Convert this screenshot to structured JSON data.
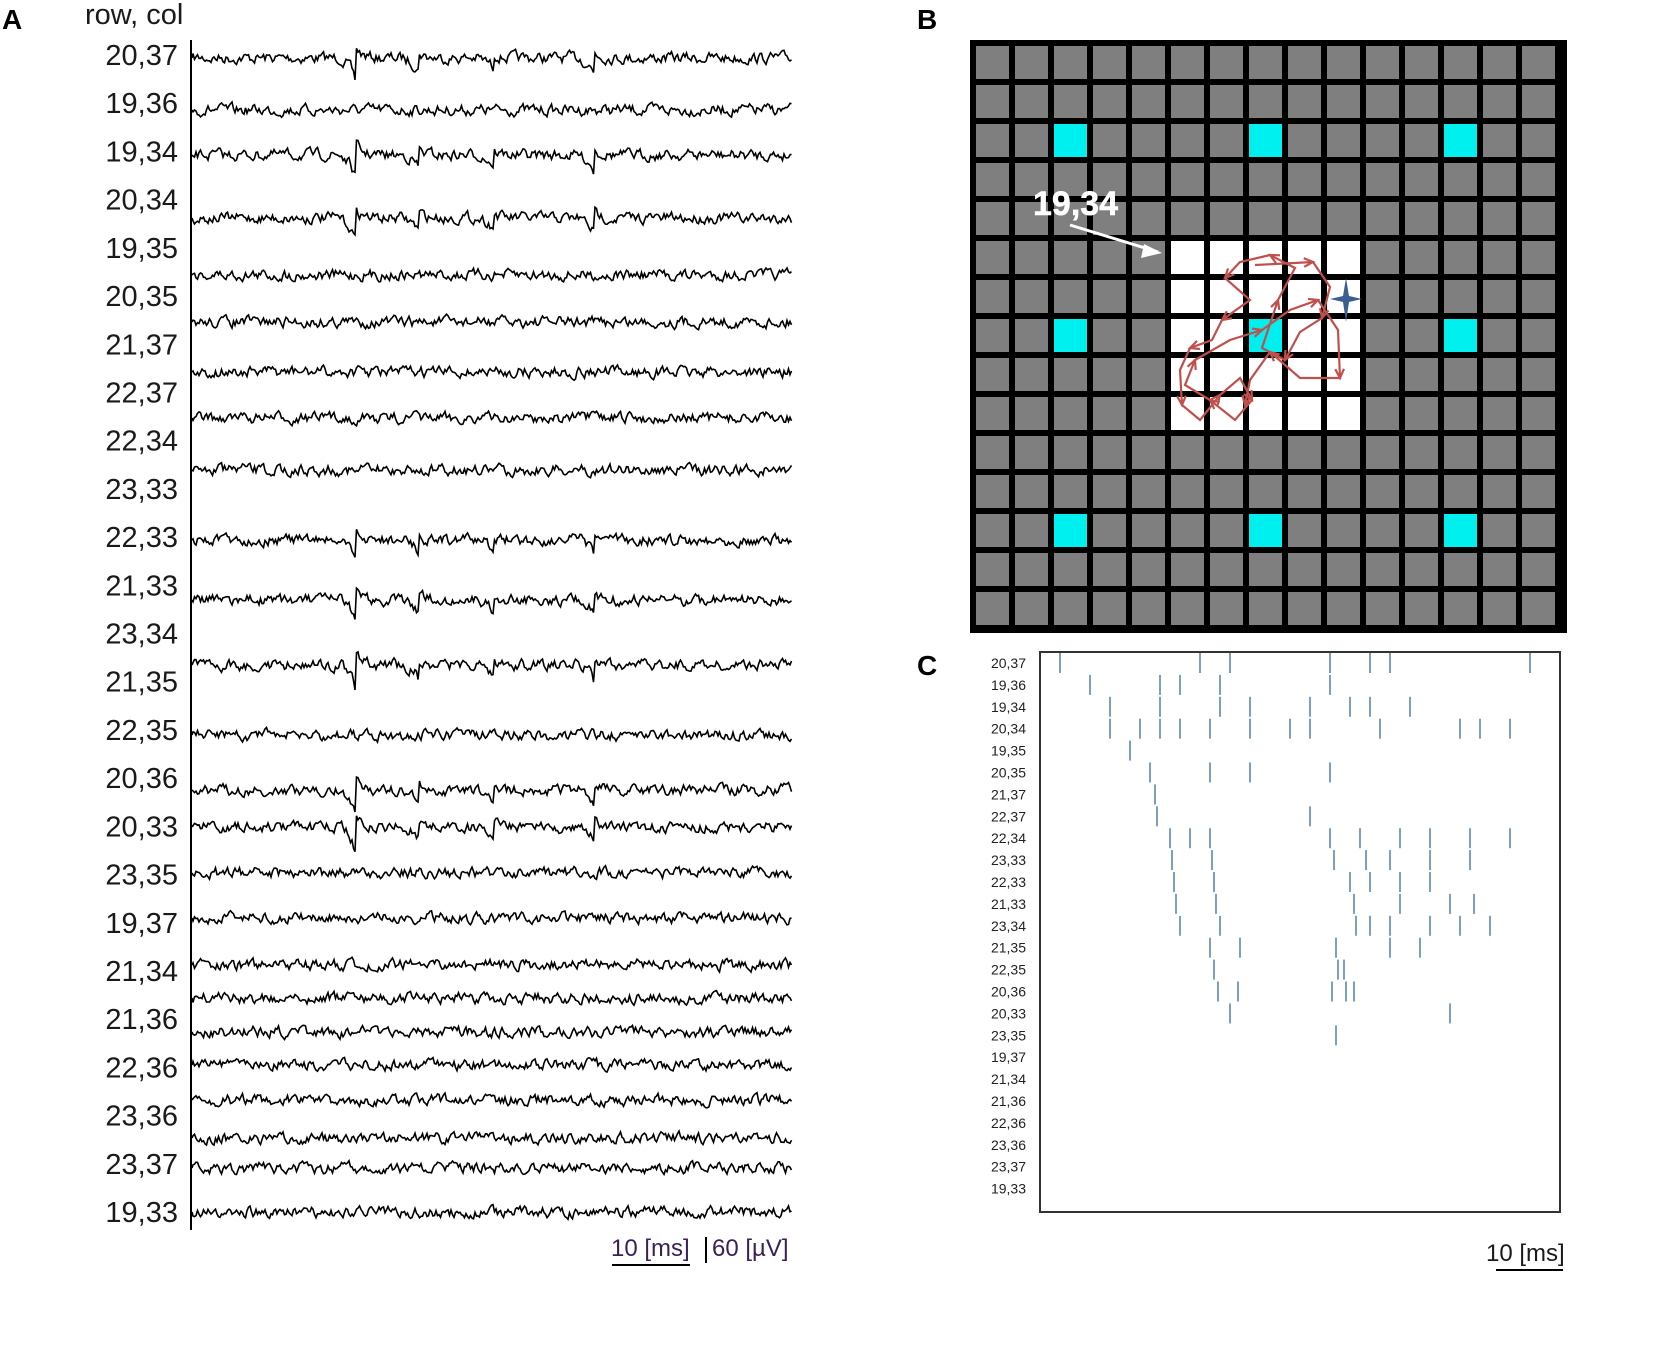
{
  "panels": {
    "A": {
      "letter": "A",
      "header": "row, col",
      "labels": [
        "20,37",
        "19,36",
        "19,34",
        "20,34",
        "19,35",
        "20,35",
        "21,37",
        "22,37",
        "22,34",
        "23,33",
        "22,33",
        "21,33",
        "23,34",
        "21,35",
        "22,35",
        "20,36",
        "20,33",
        "23,35",
        "19,37",
        "21,34",
        "21,36",
        "22,36",
        "23,36",
        "23,37",
        "19,33"
      ],
      "time_scale": "10 [ms]",
      "amp_scale": "60 [µV]"
    },
    "B": {
      "letter": "B",
      "annotation": "19,34",
      "grid_rows": 15,
      "grid_cols": 15,
      "colors": {
        "background": "#000000",
        "electrode": "#7f7f7f",
        "active": "#ffffff",
        "stimulation": "#00f0f0",
        "path": "#c0504d",
        "star": "#3b5f8f"
      },
      "stimulation_sites": [
        [
          2,
          2
        ],
        [
          2,
          7
        ],
        [
          2,
          12
        ],
        [
          7,
          2
        ],
        [
          7,
          7
        ],
        [
          7,
          12
        ],
        [
          12,
          2
        ],
        [
          12,
          7
        ],
        [
          12,
          12
        ]
      ],
      "active_sites": [
        [
          5,
          5
        ],
        [
          5,
          6
        ],
        [
          5,
          7
        ],
        [
          5,
          8
        ],
        [
          5,
          9
        ],
        [
          6,
          5
        ],
        [
          6,
          6
        ],
        [
          6,
          7
        ],
        [
          6,
          8
        ],
        [
          6,
          9
        ],
        [
          7,
          5
        ],
        [
          7,
          6
        ],
        [
          7,
          8
        ],
        [
          7,
          9
        ],
        [
          8,
          5
        ],
        [
          8,
          6
        ],
        [
          8,
          7
        ],
        [
          8,
          8
        ],
        [
          8,
          9
        ],
        [
          9,
          5
        ],
        [
          9,
          6
        ],
        [
          9,
          7
        ],
        [
          9,
          8
        ],
        [
          9,
          9
        ]
      ]
    },
    "C": {
      "letter": "C",
      "labels": [
        "20,37",
        "19,36",
        "19,34",
        "20,34",
        "19,35",
        "20,35",
        "21,37",
        "22,37",
        "22,34",
        "23,33",
        "22,33",
        "21,33",
        "23,34",
        "21,35",
        "22,35",
        "20,36",
        "20,33",
        "23,35",
        "19,37",
        "21,34",
        "21,36",
        "22,36",
        "23,36",
        "23,37",
        "19,33"
      ],
      "time_scale": "10 [ms]",
      "spike_color": "#7f9fbf",
      "spikes": [
        [
          1,
          8,
          9.5,
          14.5,
          16.5,
          17.5,
          24.5
        ],
        [
          2.5,
          6,
          7,
          9,
          14.5
        ],
        [
          3.5,
          6,
          9,
          10.5,
          13.5,
          15.5,
          16.5,
          18.5
        ],
        [
          3.5,
          5,
          6,
          7,
          8.5,
          10.5,
          12.5,
          13.5,
          17,
          21,
          22,
          23.5
        ],
        [
          4.5
        ],
        [
          5.5,
          8.5,
          10.5,
          14.5
        ],
        [
          5.75
        ],
        [
          5.85,
          13.5
        ],
        [
          6.5,
          7.5,
          8.5,
          14.5,
          16,
          18,
          19.5,
          21.5,
          23.5
        ],
        [
          6.6,
          8.6,
          14.7,
          16.3,
          17.5,
          19.5,
          21.5
        ],
        [
          6.7,
          8.7,
          15.5,
          16.5,
          18,
          19.5
        ],
        [
          6.8,
          8.8,
          15.7,
          18,
          20.5,
          21.7
        ],
        [
          7,
          9,
          15.8,
          16.5,
          17.5,
          19.5,
          21,
          22.5
        ],
        [
          8.5,
          10,
          14.8,
          17.5,
          19
        ],
        [
          8.7,
          14.9,
          15.2
        ],
        [
          8.9,
          9.9,
          14.6,
          15.3,
          15.7
        ],
        [
          9.5,
          20.5
        ],
        [
          14.8
        ]
      ]
    }
  }
}
